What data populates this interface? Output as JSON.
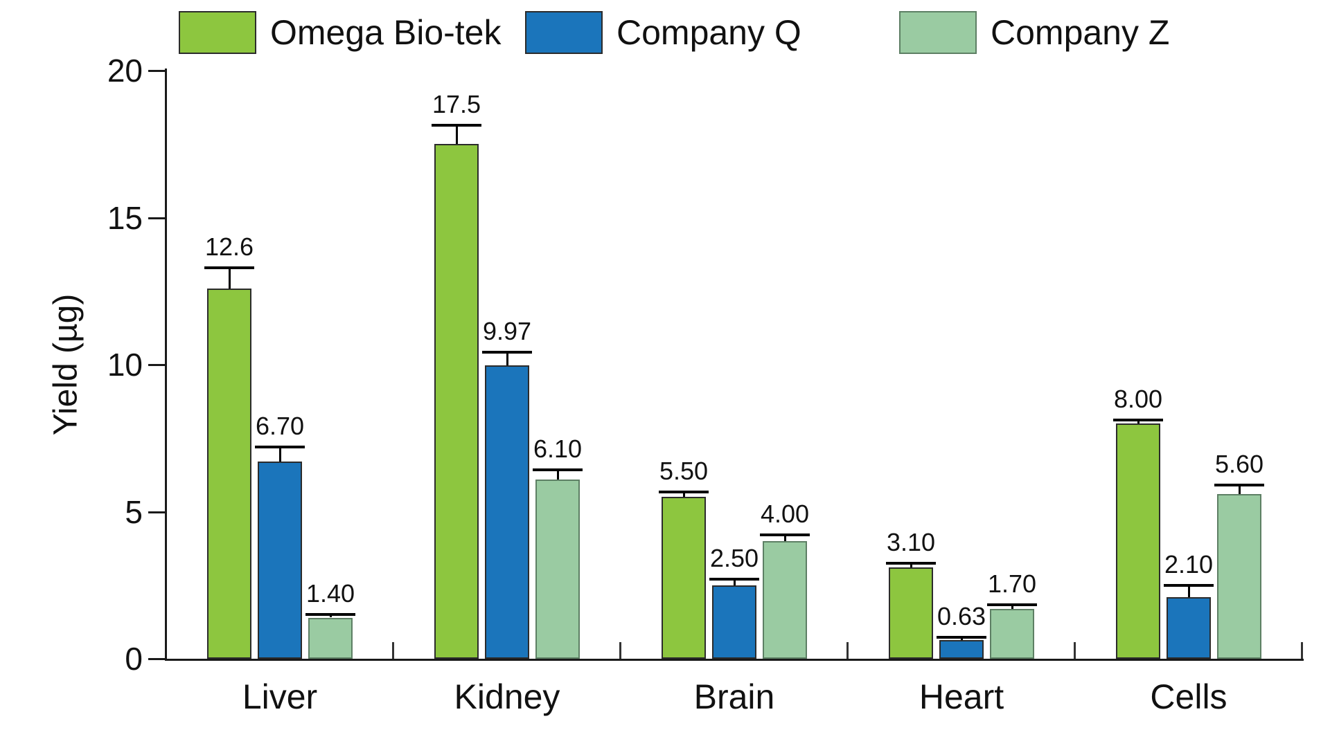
{
  "chart_data": {
    "type": "bar",
    "title": "",
    "categories": [
      "Liver",
      "Kidney",
      "Brain",
      "Heart",
      "Cells"
    ],
    "series": [
      {
        "name": "Omega Bio-tek",
        "color": "#8DC63F",
        "border": "#2b2b2b",
        "values": [
          12.6,
          17.5,
          5.5,
          3.1,
          8.0
        ],
        "value_labels": [
          "12.6",
          "17.5",
          "5.50",
          "3.10",
          "8.00"
        ],
        "errors": [
          0.65,
          0.6,
          0.12,
          0.1,
          0.07
        ]
      },
      {
        "name": "Company Q",
        "color": "#1B75BB",
        "border": "#2b2b2b",
        "values": [
          6.7,
          9.97,
          2.5,
          0.63,
          2.1
        ],
        "value_labels": [
          "6.70",
          "9.97",
          "2.50",
          "0.63",
          "2.10"
        ],
        "errors": [
          0.45,
          0.4,
          0.15,
          0.05,
          0.35
        ]
      },
      {
        "name": "Company Z",
        "color": "#9ACBA2",
        "border": "#5d7f64",
        "values": [
          1.4,
          6.1,
          4.0,
          1.7,
          5.6
        ],
        "value_labels": [
          "1.40",
          "6.10",
          "4.00",
          "1.70",
          "5.60"
        ],
        "errors": [
          0.07,
          0.28,
          0.16,
          0.1,
          0.27
        ]
      }
    ],
    "xlabel": "",
    "ylabel": "Yield (µg)",
    "ylim": [
      0,
      20
    ],
    "yticks": [
      0,
      5,
      10,
      15,
      20
    ],
    "ytick_labels": [
      "0",
      "5",
      "10",
      "15",
      "20"
    ],
    "grid": false,
    "error_bars": true,
    "legend_position": "top"
  }
}
